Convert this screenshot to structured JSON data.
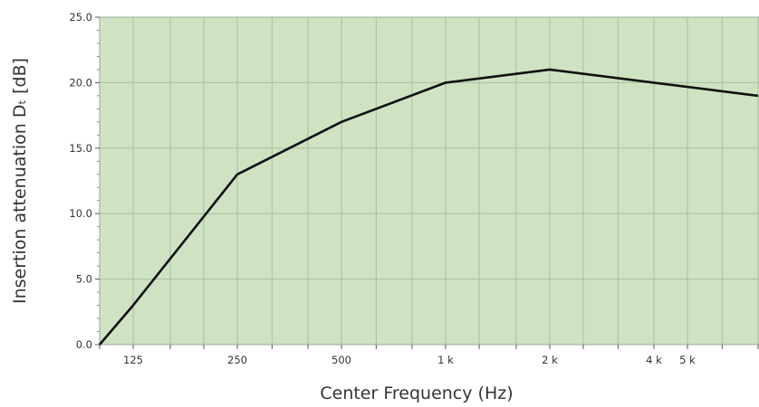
{
  "chart_data": {
    "type": "line",
    "xlabel": "Center Frequency (Hz)",
    "ylabel": "Insertion attenuation Dₜ [dB]",
    "x_scale": "log",
    "ylim": [
      0,
      25
    ],
    "xlim": [
      100,
      8000
    ],
    "y_ticks": [
      {
        "value": 0,
        "label": "0.0"
      },
      {
        "value": 5,
        "label": "5.0"
      },
      {
        "value": 10,
        "label": "10.0"
      },
      {
        "value": 15,
        "label": "15.0"
      },
      {
        "value": 20,
        "label": "20.0"
      },
      {
        "value": 25,
        "label": "25.0"
      }
    ],
    "x_tick_labels": [
      {
        "value": 125,
        "label": "125"
      },
      {
        "value": 250,
        "label": "250"
      },
      {
        "value": 500,
        "label": "500"
      },
      {
        "value": 1000,
        "label": "1 k"
      },
      {
        "value": 2000,
        "label": "2 k"
      },
      {
        "value": 4000,
        "label": "4 k"
      },
      {
        "value": 5000,
        "label": "5 k"
      }
    ],
    "x_gridlines": [
      100,
      125,
      160,
      200,
      250,
      315,
      400,
      500,
      630,
      800,
      1000,
      1250,
      1600,
      2000,
      2500,
      3150,
      4000,
      5000,
      6300,
      8000
    ],
    "grid": true,
    "colors": {
      "plot_background": "#cfe3c3",
      "grid": "#a9bfa0",
      "line": "#111111",
      "frame": "#9aaa94"
    },
    "series": [
      {
        "x": [
          100,
          125,
          250,
          500,
          1000,
          2000,
          4000,
          8000
        ],
        "y": [
          0,
          3,
          13,
          17,
          20,
          21,
          20,
          19
        ]
      }
    ]
  }
}
